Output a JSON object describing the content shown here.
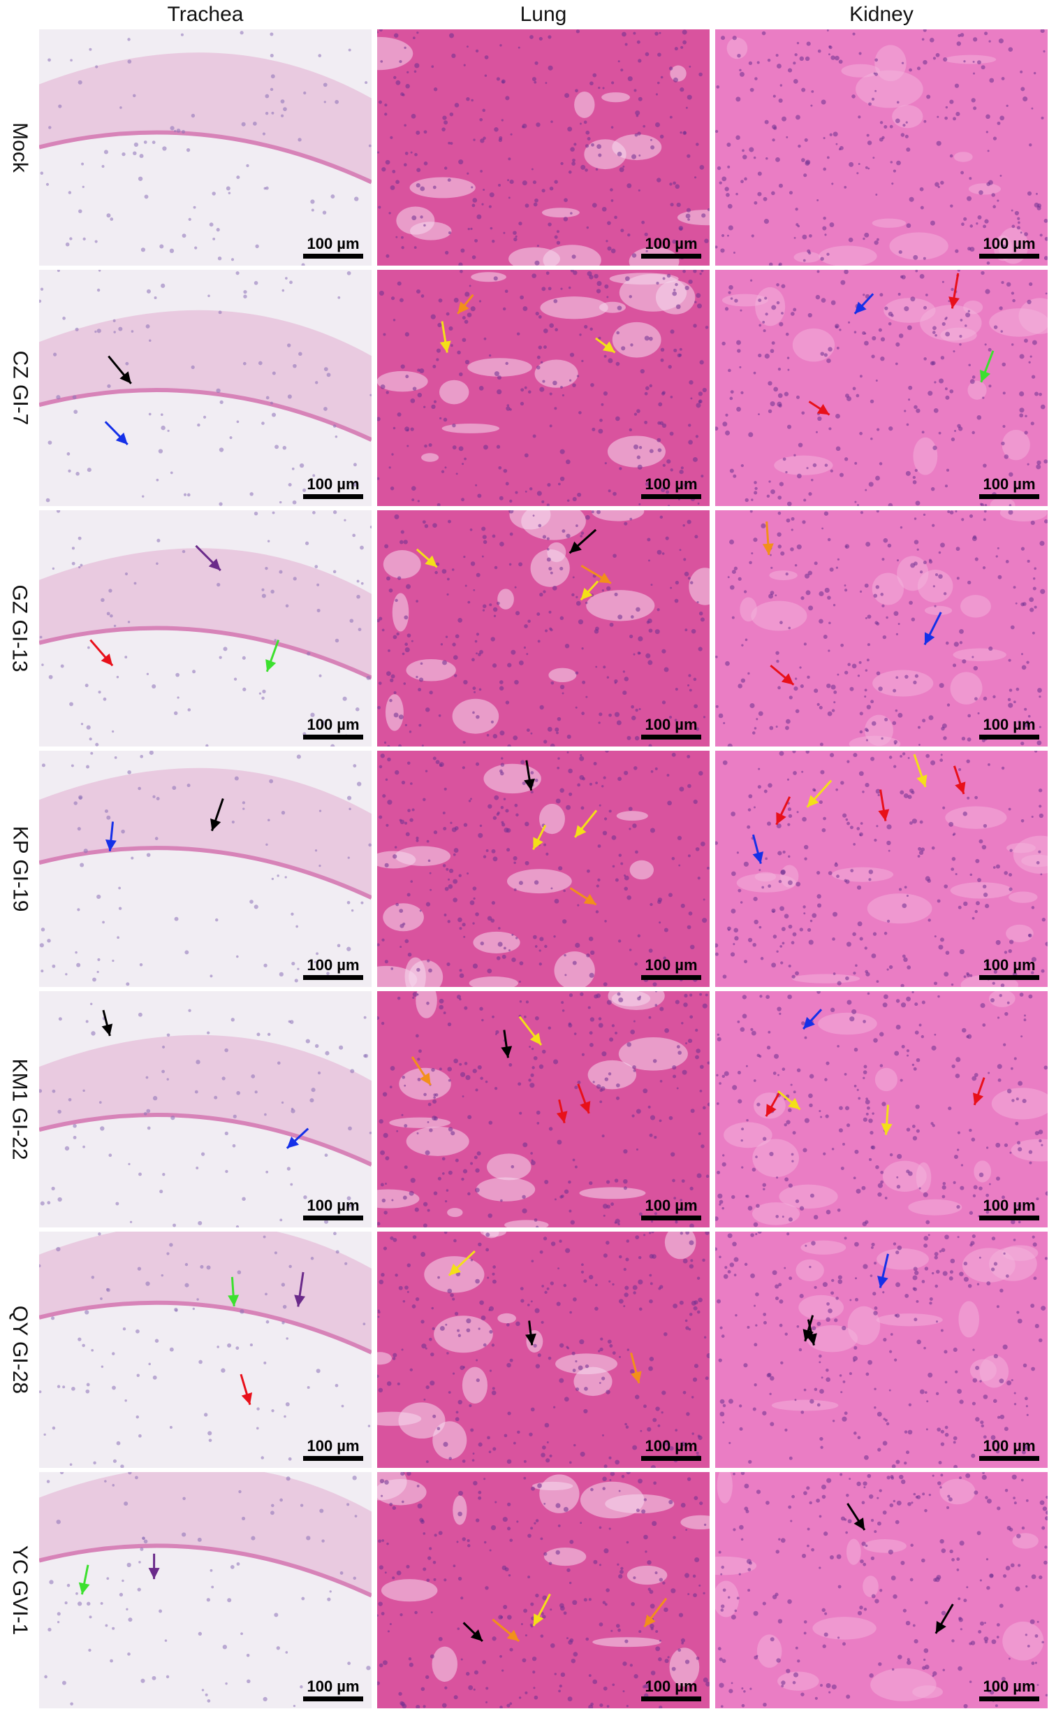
{
  "columns": [
    "Trachea",
    "Lung",
    "Kidney"
  ],
  "rows": [
    "Mock",
    "CZ GI-7",
    "GZ GI-13",
    "KP GI-19",
    "KM1 GI-22",
    "QY GI-28",
    "YC GVI-1"
  ],
  "scale_bar_label": "100 µm",
  "colors": {
    "trachea_bg": "#f1edf3",
    "trachea_tissue": "#e7c3dc",
    "lung_bg": "#d9539e",
    "kidney_bg": "#ea7dc4",
    "nuclei": "#6b2f8f",
    "arrow_black": "#000000",
    "arrow_blue": "#1530e8",
    "arrow_red": "#e8101a",
    "arrow_green": "#3ce02e",
    "arrow_yellow": "#f4e018",
    "arrow_orange": "#f2901a",
    "arrow_purple": "#6a2a8a"
  },
  "arrows": [
    [
      [
        "none"
      ],
      [
        "none"
      ],
      [
        "none"
      ]
    ],
    [
      [
        "blue",
        "black"
      ],
      [
        "yellow",
        "orange",
        "yellow"
      ],
      [
        "green",
        "red",
        "blue",
        "red"
      ]
    ],
    [
      [
        "green",
        "red",
        "purple"
      ],
      [
        "black",
        "yellow",
        "orange",
        "yellow"
      ],
      [
        "blue",
        "orange",
        "red"
      ]
    ],
    [
      [
        "black",
        "blue"
      ],
      [
        "black",
        "orange",
        "yellow",
        "yellow"
      ],
      [
        "red",
        "yellow",
        "yellow",
        "red",
        "red",
        "blue"
      ]
    ],
    [
      [
        "blue",
        "black"
      ],
      [
        "red",
        "black",
        "orange",
        "red",
        "yellow"
      ],
      [
        "red",
        "yellow",
        "red",
        "yellow",
        "blue"
      ]
    ],
    [
      [
        "red",
        "green",
        "purple"
      ],
      [
        "black",
        "orange",
        "yellow"
      ],
      [
        "blue",
        "black",
        "black"
      ]
    ],
    [
      [
        "purple",
        "green"
      ],
      [
        "black",
        "orange",
        "yellow",
        "orange"
      ],
      [
        "black",
        "black"
      ]
    ]
  ]
}
